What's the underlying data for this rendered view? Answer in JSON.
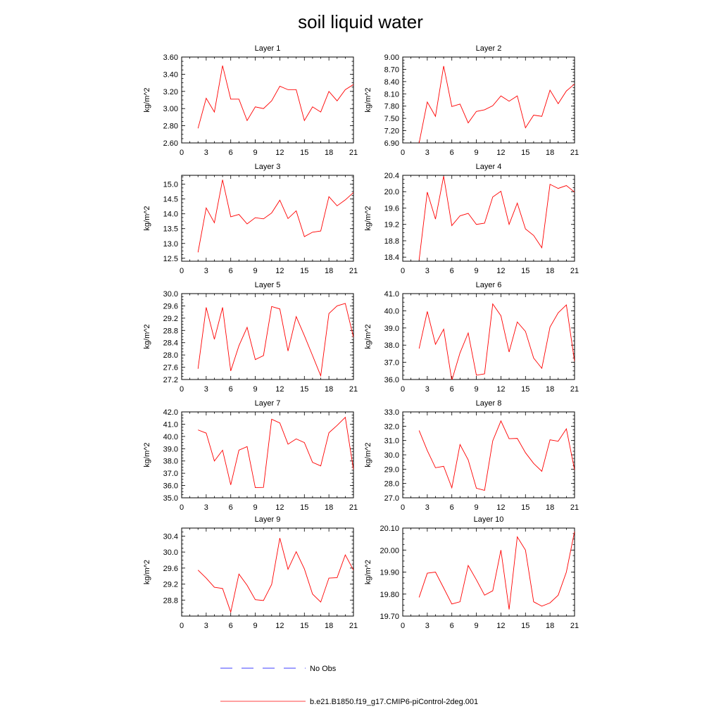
{
  "figure": {
    "title": "soil liquid water"
  },
  "colors": {
    "model_line": "#ff0000",
    "obs_line": "#0000ff",
    "axis": "#000000"
  },
  "legend": [
    {
      "label": "No Obs",
      "color": "#0000ff",
      "style": "dashed"
    },
    {
      "label": "b.e21.B1850.f19_g17.CMIP6-piControl-2deg.001",
      "color": "#ff0000",
      "style": "solid"
    }
  ],
  "chart_data": [
    {
      "type": "line",
      "title": "Layer 1",
      "ylabel": "kg/m^2",
      "xlim": [
        0,
        21
      ],
      "ylim": [
        2.6,
        3.6
      ],
      "xticks": [
        "0",
        "3",
        "6",
        "9",
        "12",
        "15",
        "18",
        "21"
      ],
      "yticks": [
        "2.60",
        "2.80",
        "3.00",
        "3.20",
        "3.40",
        "3.60"
      ],
      "x": [
        2,
        3,
        4,
        5,
        6,
        7,
        8,
        9,
        10,
        11,
        12,
        13,
        14,
        15,
        16,
        17,
        18,
        19,
        20,
        21
      ],
      "series": [
        {
          "values": [
            2.77,
            3.12,
            2.96,
            3.5,
            3.11,
            3.11,
            2.86,
            3.02,
            3.0,
            3.09,
            3.26,
            3.22,
            3.22,
            2.86,
            3.02,
            2.96,
            3.2,
            3.09,
            3.22,
            3.28
          ]
        }
      ]
    },
    {
      "type": "line",
      "title": "Layer 2",
      "ylabel": "kg/m^2",
      "xlim": [
        0,
        21
      ],
      "ylim": [
        6.9,
        9.0
      ],
      "xticks": [
        "0",
        "3",
        "6",
        "9",
        "12",
        "15",
        "18",
        "21"
      ],
      "yticks": [
        "6.90",
        "7.20",
        "7.50",
        "7.80",
        "8.10",
        "8.40",
        "8.70",
        "9.00"
      ],
      "x": [
        2,
        3,
        4,
        5,
        6,
        7,
        8,
        9,
        10,
        11,
        12,
        13,
        14,
        15,
        16,
        17,
        18,
        19,
        20,
        21
      ],
      "series": [
        {
          "values": [
            6.9,
            7.9,
            7.55,
            8.78,
            7.79,
            7.85,
            7.39,
            7.67,
            7.71,
            7.81,
            8.05,
            7.92,
            8.05,
            7.27,
            7.58,
            7.55,
            8.19,
            7.86,
            8.17,
            8.34
          ]
        }
      ]
    },
    {
      "type": "line",
      "title": "Layer 3",
      "ylabel": "kg/m^2",
      "xlim": [
        0,
        21
      ],
      "ylim": [
        12.4,
        15.3
      ],
      "xticks": [
        "0",
        "3",
        "6",
        "9",
        "12",
        "15",
        "18",
        "21"
      ],
      "yticks": [
        "12.5",
        "13.0",
        "13.5",
        "14.0",
        "14.5",
        "15.0"
      ],
      "x": [
        2,
        3,
        4,
        5,
        6,
        7,
        8,
        9,
        10,
        11,
        12,
        13,
        14,
        15,
        16,
        17,
        18,
        19,
        20,
        21
      ],
      "series": [
        {
          "values": [
            12.7,
            14.2,
            13.7,
            15.15,
            13.9,
            13.98,
            13.66,
            13.87,
            13.83,
            14.03,
            14.46,
            13.84,
            14.1,
            13.23,
            13.38,
            13.42,
            14.58,
            14.27,
            14.47,
            14.72
          ]
        }
      ]
    },
    {
      "type": "line",
      "title": "Layer 4",
      "ylabel": "kg/m^2",
      "xlim": [
        0,
        21
      ],
      "ylim": [
        18.3,
        20.4
      ],
      "xticks": [
        "0",
        "3",
        "6",
        "9",
        "12",
        "15",
        "18",
        "21"
      ],
      "yticks": [
        "18.4",
        "18.8",
        "19.2",
        "19.6",
        "20.0",
        "20.4"
      ],
      "x": [
        2,
        3,
        4,
        5,
        6,
        7,
        8,
        9,
        10,
        11,
        12,
        13,
        14,
        15,
        16,
        17,
        18,
        19,
        20,
        21
      ],
      "series": [
        {
          "values": [
            18.33,
            19.99,
            19.33,
            20.38,
            19.17,
            19.41,
            19.47,
            19.2,
            19.23,
            19.87,
            20.01,
            19.2,
            19.72,
            19.09,
            18.93,
            18.63,
            20.18,
            20.08,
            20.15,
            19.99
          ]
        }
      ]
    },
    {
      "type": "line",
      "title": "Layer 5",
      "ylabel": "kg/m^2",
      "xlim": [
        0,
        21
      ],
      "ylim": [
        27.2,
        30.0
      ],
      "xticks": [
        "0",
        "3",
        "6",
        "9",
        "12",
        "15",
        "18",
        "21"
      ],
      "yticks": [
        "27.2",
        "27.6",
        "28.0",
        "28.4",
        "28.8",
        "29.2",
        "29.6",
        "30.0"
      ],
      "x": [
        2,
        3,
        4,
        5,
        6,
        7,
        8,
        9,
        10,
        11,
        12,
        13,
        14,
        15,
        16,
        17,
        18,
        19,
        20,
        21
      ],
      "series": [
        {
          "values": [
            27.55,
            29.55,
            28.51,
            29.55,
            27.48,
            28.3,
            28.9,
            27.85,
            27.98,
            29.58,
            29.5,
            28.13,
            29.25,
            28.63,
            27.98,
            27.32,
            29.35,
            29.6,
            29.68,
            28.58
          ]
        }
      ]
    },
    {
      "type": "line",
      "title": "Layer 6",
      "ylabel": "kg/m^2",
      "xlim": [
        0,
        21
      ],
      "ylim": [
        36.0,
        41.0
      ],
      "xticks": [
        "0",
        "3",
        "6",
        "9",
        "12",
        "15",
        "18",
        "21"
      ],
      "yticks": [
        "36.0",
        "37.0",
        "38.0",
        "39.0",
        "40.0",
        "41.0"
      ],
      "x": [
        2,
        3,
        4,
        5,
        6,
        7,
        8,
        9,
        10,
        11,
        12,
        13,
        14,
        15,
        16,
        17,
        18,
        19,
        20,
        21
      ],
      "series": [
        {
          "values": [
            37.8,
            39.96,
            38.05,
            38.93,
            35.95,
            37.55,
            38.71,
            36.25,
            36.33,
            40.4,
            39.71,
            37.6,
            39.35,
            38.8,
            37.25,
            36.65,
            39.05,
            39.88,
            40.34,
            37.05
          ]
        }
      ]
    },
    {
      "type": "line",
      "title": "Layer 7",
      "ylabel": "kg/m^2",
      "xlim": [
        0,
        21
      ],
      "ylim": [
        35.0,
        42.0
      ],
      "xticks": [
        "0",
        "3",
        "6",
        "9",
        "12",
        "15",
        "18",
        "21"
      ],
      "yticks": [
        "35.0",
        "36.0",
        "37.0",
        "38.0",
        "39.0",
        "40.0",
        "41.0",
        "42.0"
      ],
      "x": [
        2,
        3,
        4,
        5,
        6,
        7,
        8,
        9,
        10,
        11,
        12,
        13,
        14,
        15,
        16,
        17,
        18,
        19,
        20,
        21
      ],
      "series": [
        {
          "values": [
            40.53,
            40.27,
            38.0,
            38.88,
            36.05,
            38.88,
            39.17,
            35.83,
            35.85,
            41.4,
            41.1,
            39.37,
            39.8,
            39.5,
            37.89,
            37.6,
            40.3,
            40.9,
            41.56,
            37.3
          ]
        }
      ]
    },
    {
      "type": "line",
      "title": "Layer 8",
      "ylabel": "kg/m^2",
      "xlim": [
        0,
        21
      ],
      "ylim": [
        27.0,
        33.0
      ],
      "xticks": [
        "0",
        "3",
        "6",
        "9",
        "12",
        "15",
        "18",
        "21"
      ],
      "yticks": [
        "27.0",
        "28.0",
        "29.0",
        "30.0",
        "31.0",
        "32.0",
        "33.0"
      ],
      "x": [
        2,
        3,
        4,
        5,
        6,
        7,
        8,
        9,
        10,
        11,
        12,
        13,
        14,
        15,
        16,
        17,
        18,
        19,
        20,
        21
      ],
      "series": [
        {
          "values": [
            31.7,
            30.3,
            29.1,
            29.2,
            27.7,
            30.72,
            29.65,
            27.67,
            27.52,
            30.98,
            32.37,
            31.13,
            31.15,
            30.15,
            29.4,
            28.85,
            31.05,
            30.95,
            31.82,
            28.95
          ]
        }
      ]
    },
    {
      "type": "line",
      "title": "Layer 9",
      "ylabel": "kg/m^2",
      "xlim": [
        0,
        21
      ],
      "ylim": [
        28.4,
        30.6
      ],
      "xticks": [
        "0",
        "3",
        "6",
        "9",
        "12",
        "15",
        "18",
        "21"
      ],
      "yticks": [
        "28.8",
        "29.2",
        "29.6",
        "30.0",
        "30.4"
      ],
      "x": [
        2,
        3,
        4,
        5,
        6,
        7,
        8,
        9,
        10,
        11,
        12,
        13,
        14,
        15,
        16,
        17,
        18,
        19,
        20,
        21
      ],
      "series": [
        {
          "values": [
            29.55,
            29.35,
            29.12,
            29.09,
            28.5,
            29.45,
            29.17,
            28.81,
            28.79,
            29.19,
            30.35,
            29.57,
            30.01,
            29.58,
            28.95,
            28.75,
            29.35,
            29.36,
            29.93,
            29.55
          ]
        }
      ]
    },
    {
      "type": "line",
      "title": "Layer 10",
      "ylabel": "kg/m^2",
      "xlim": [
        0,
        21
      ],
      "ylim": [
        19.7,
        20.1
      ],
      "xticks": [
        "0",
        "3",
        "6",
        "9",
        "12",
        "15",
        "18",
        "21"
      ],
      "yticks": [
        "19.70",
        "19.80",
        "19.90",
        "20.00",
        "20.10"
      ],
      "x": [
        2,
        3,
        4,
        5,
        6,
        7,
        8,
        9,
        10,
        11,
        12,
        13,
        14,
        15,
        16,
        17,
        18,
        19,
        20,
        21
      ],
      "series": [
        {
          "values": [
            19.785,
            19.895,
            19.9,
            19.828,
            19.755,
            19.765,
            19.93,
            19.865,
            19.795,
            19.815,
            20.0,
            19.73,
            20.06,
            20.0,
            19.765,
            19.745,
            19.76,
            19.795,
            19.9,
            20.085
          ]
        }
      ]
    }
  ]
}
